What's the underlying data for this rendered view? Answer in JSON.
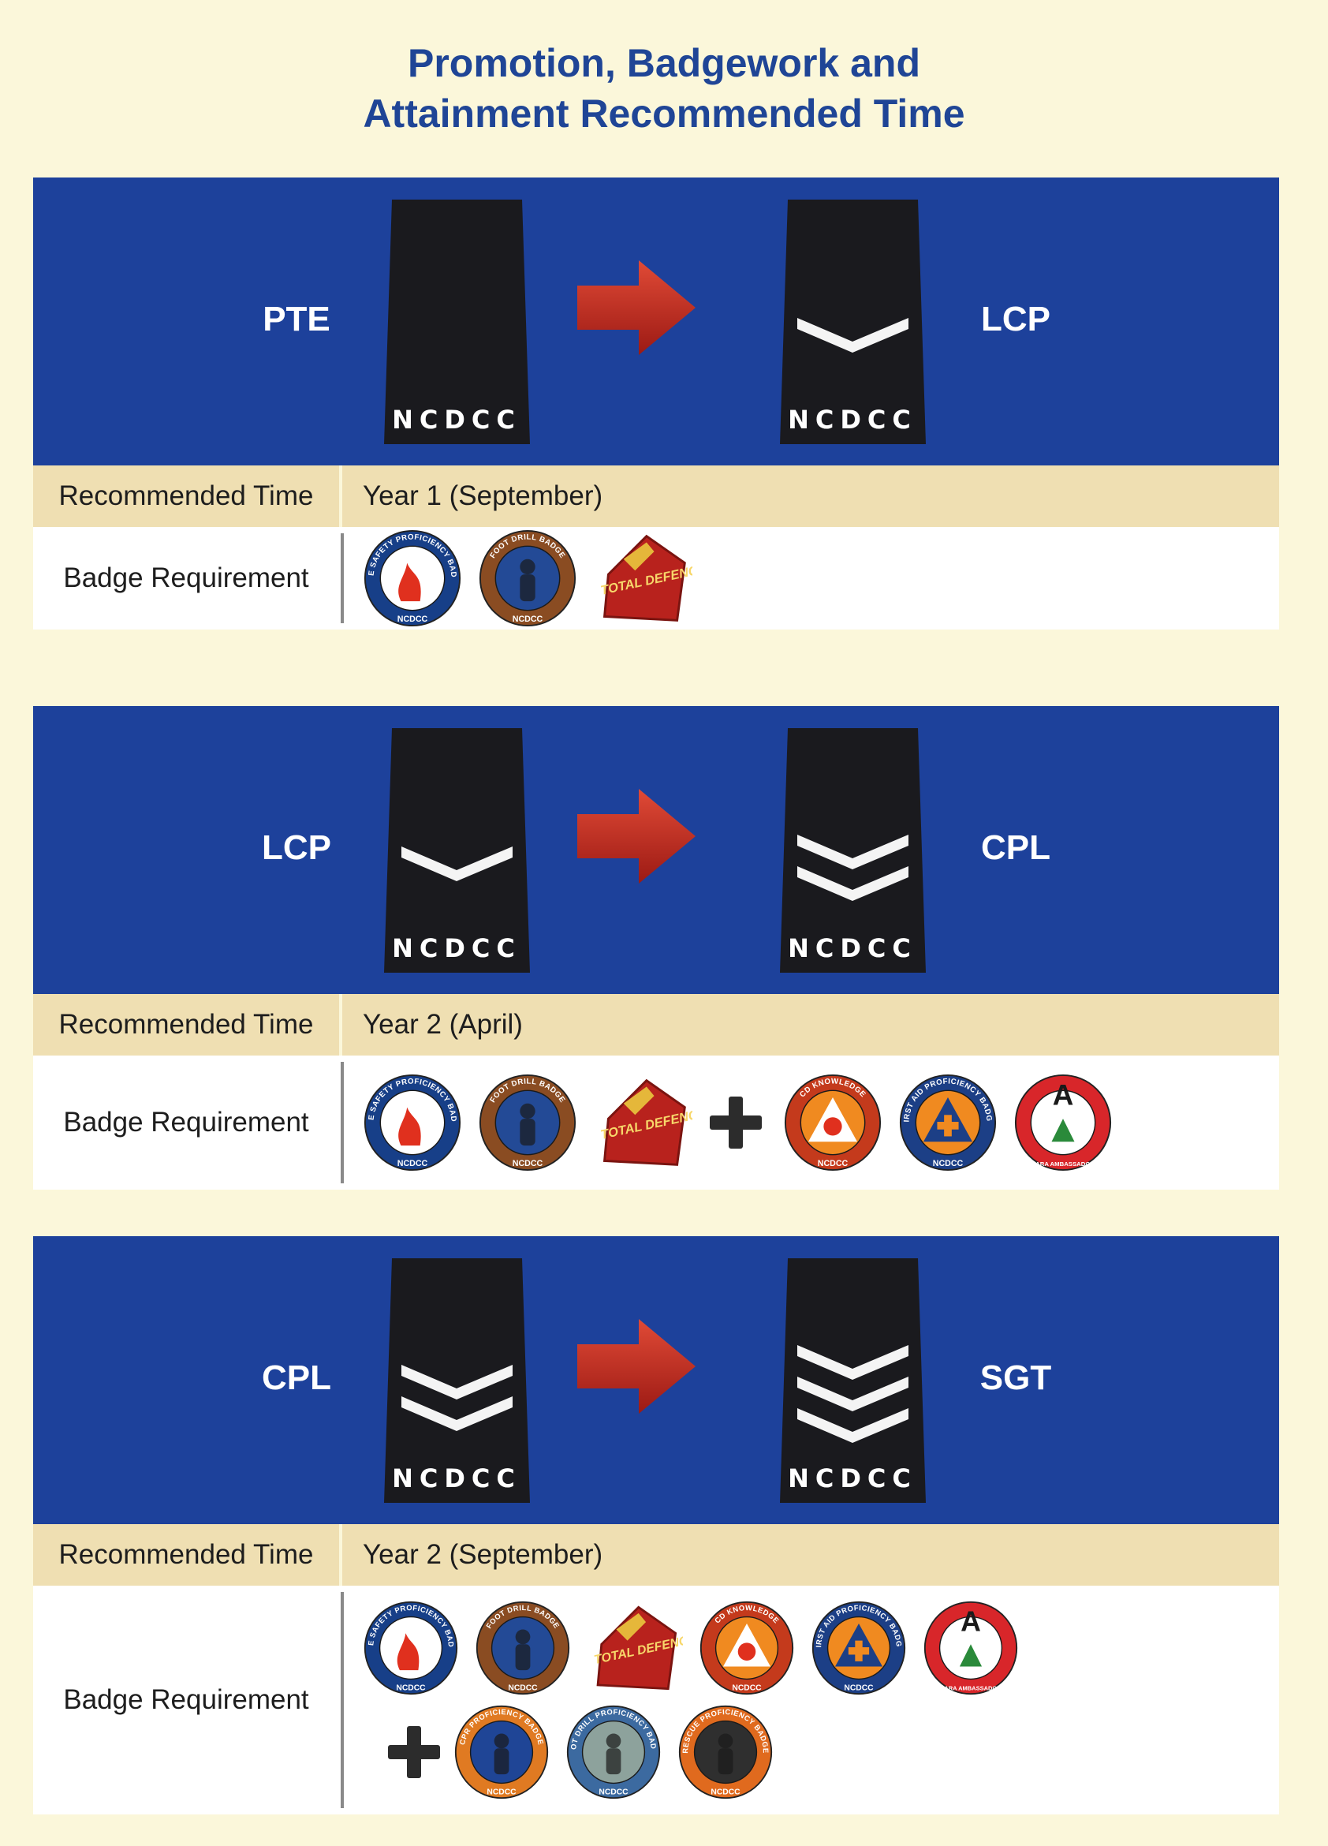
{
  "page": {
    "title_line1": "Promotion, Badgework and",
    "title_line2": "Attainment Recommended Time"
  },
  "colors": {
    "background": "#fbf7da",
    "title": "#1f4596",
    "banner": "#1d419b",
    "time_row": "#efdfb2",
    "badge_row": "#ffffff",
    "rank_board": "#1a1a1e",
    "arrow": "#c0281c"
  },
  "labels": {
    "recommended_time": "Recommended Time",
    "badge_requirement": "Badge Requirement",
    "board_text": "NCDCC"
  },
  "sections": [
    {
      "from_rank": "PTE",
      "to_rank": "LCP",
      "from_chevrons": 0,
      "to_chevrons": 1,
      "recommended_time": "Year 1 (September)",
      "badge_rows": [
        [
          "fire-safety-proficiency-badge",
          "foot-drill-badge",
          "total-defence-badge"
        ]
      ]
    },
    {
      "from_rank": "LCP",
      "to_rank": "CPL",
      "from_chevrons": 1,
      "to_chevrons": 2,
      "recommended_time": "Year 2 (April)",
      "badge_rows": [
        [
          "fire-safety-proficiency-badge",
          "foot-drill-badge",
          "total-defence-badge",
          "plus",
          "cd-knowledge-badge",
          "first-aid-proficiency-badge",
          "sara-ambassador-badge"
        ]
      ]
    },
    {
      "from_rank": "CPL",
      "to_rank": "SGT",
      "from_chevrons": 2,
      "to_chevrons": 3,
      "recommended_time": "Year 2 (September)",
      "badge_rows": [
        [
          "fire-safety-proficiency-badge",
          "foot-drill-badge",
          "total-defence-badge",
          "cd-knowledge-badge",
          "first-aid-proficiency-badge",
          "sara-ambassador-badge"
        ],
        [
          "plus",
          "cpr-proficiency-badge",
          "foot-drill-proficiency-badge",
          "rescue-proficiency-badge"
        ]
      ]
    }
  ],
  "badges": {
    "fire-safety-proficiency-badge": {
      "text": "FIRE SAFETY PROFICIENCY BADGE",
      "bottom": "NCDCC",
      "ring": "#173f88",
      "inner": "#ffffff",
      "icon": "flame-icon"
    },
    "foot-drill-badge": {
      "text": "FOOT DRILL BADGE",
      "bottom": "NCDCC",
      "ring": "#8a4c22",
      "inner": "#234a96",
      "icon": "cadet-icon"
    },
    "total-defence-badge": {
      "text": "TOTAL DEFENCE",
      "ring": "#b8221d",
      "inner": "#e5b73a",
      "icon": "total-defence-icon"
    },
    "cd-knowledge-badge": {
      "text": "CD KNOWLEDGE",
      "bottom": "NCDCC",
      "ring": "#c43a1c",
      "inner": "#f08a20",
      "icon": "civil-defence-triangle-icon"
    },
    "first-aid-proficiency-badge": {
      "text": "FIRST AID PROFICIENCY BADGE",
      "bottom": "NCDCC",
      "ring": "#1c3f86",
      "inner": "#f08a20",
      "icon": "first-aid-cross-icon"
    },
    "sara-ambassador-badge": {
      "text": "A",
      "bottom": "SARA AMBASSADOR",
      "ring": "#d8262a",
      "inner": "#ffffff",
      "icon": "sara-icon"
    },
    "cpr-proficiency-badge": {
      "text": "CPR PROFICIENCY BADGE",
      "bottom": "NCDCC",
      "ring": "#e07a22",
      "inner": "#1f4596",
      "icon": "cpr-icon"
    },
    "foot-drill-proficiency-badge": {
      "text": "FOOT DRILL PROFICIENCY BADGE",
      "bottom": "NCDCC",
      "ring": "#3c6aa0",
      "inner": "#8da29c",
      "icon": "cadet-icon"
    },
    "rescue-proficiency-badge": {
      "text": "RESCUE PROFICIENCY BADGE",
      "bottom": "NCDCC",
      "ring": "#e06a1e",
      "inner": "#2f2f2f",
      "icon": "rescue-icon"
    }
  }
}
